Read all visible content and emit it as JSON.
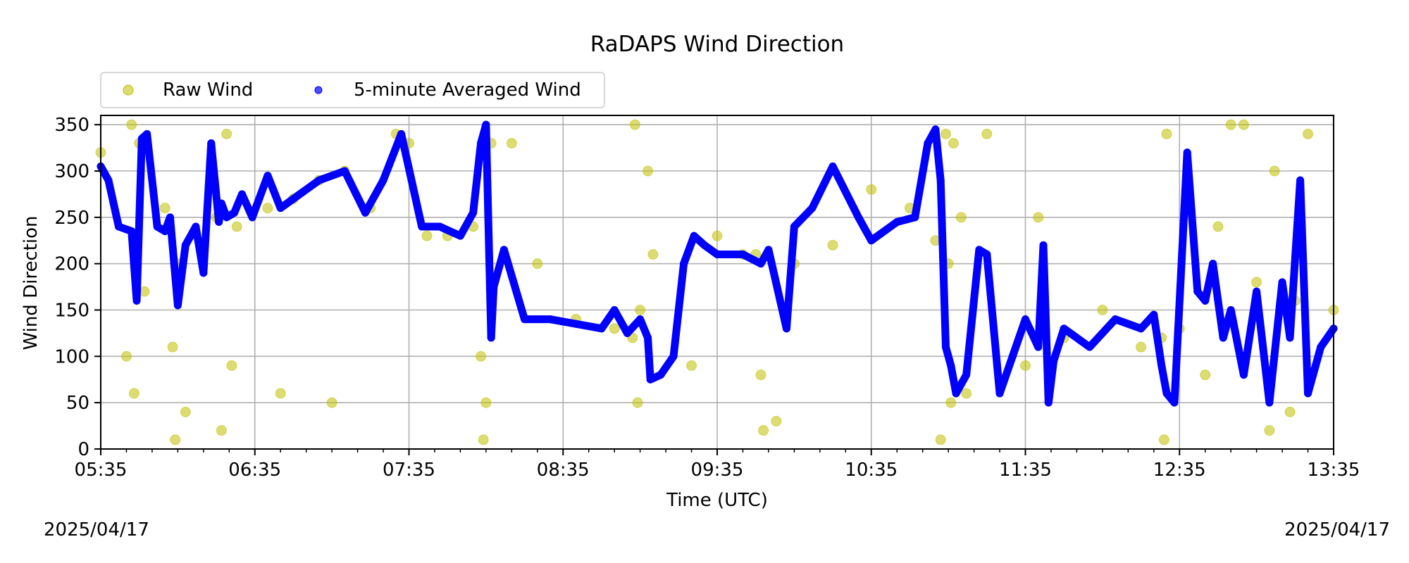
{
  "chart_data": {
    "type": "scatter",
    "title": "RaDAPS Wind Direction",
    "xlabel": "Time (UTC)",
    "ylabel": "Wind Direction",
    "x_unit": "time (UTC, HH:MM)",
    "xlim": [
      "05:35",
      "13:35"
    ],
    "ylim": [
      0,
      360
    ],
    "x_ticks": [
      "05:35",
      "06:35",
      "07:35",
      "08:35",
      "09:35",
      "10:35",
      "11:35",
      "12:35",
      "13:35"
    ],
    "y_ticks": [
      0,
      50,
      100,
      150,
      200,
      250,
      300,
      350
    ],
    "grid": true,
    "legend": {
      "placement": "top-left, above plot",
      "entries": [
        "Raw Wind",
        "5-minute Averaged Wind"
      ]
    },
    "date_left": "2025/04/17",
    "date_right": "2025/04/17",
    "series": [
      {
        "name": "Raw Wind",
        "color": "#bfbf00",
        "opacity": 0.55,
        "x": [
          "05:35",
          "05:50",
          "06:00",
          "06:05",
          "06:20",
          "06:28",
          "06:40",
          "06:50",
          "07:00",
          "07:10",
          "07:20",
          "07:30",
          "07:35",
          "07:50",
          "08:00",
          "08:15",
          "08:25",
          "08:40",
          "08:55",
          "09:05",
          "09:10",
          "09:25",
          "09:35",
          "09:50",
          "10:05",
          "10:20",
          "10:35",
          "10:50",
          "11:00",
          "11:10",
          "11:20",
          "11:35",
          "11:50",
          "12:05",
          "12:20",
          "12:35",
          "12:50",
          "13:05",
          "13:20",
          "13:35",
          "05:45",
          "05:48",
          "05:52",
          "06:03",
          "06:08",
          "06:22",
          "06:26",
          "06:45",
          "07:05",
          "07:42",
          "08:03",
          "08:05",
          "08:07",
          "09:02",
          "09:04",
          "09:08",
          "09:45",
          "09:52",
          "09:58",
          "10:02",
          "11:02",
          "11:05",
          "11:07",
          "11:12",
          "11:40",
          "12:28",
          "12:30",
          "12:45",
          "13:00",
          "13:12",
          "13:18",
          "05:47",
          "06:04",
          "06:24",
          "08:04",
          "09:03",
          "09:53",
          "11:04",
          "11:06",
          "12:29",
          "12:55",
          "13:10",
          "13:25"
        ],
        "y": [
          320,
          330,
          260,
          200,
          250,
          240,
          260,
          270,
          290,
          300,
          260,
          340,
          330,
          230,
          240,
          330,
          200,
          140,
          130,
          150,
          210,
          90,
          230,
          210,
          200,
          220,
          280,
          260,
          225,
          250,
          340,
          90,
          120,
          150,
          110,
          130,
          240,
          180,
          160,
          150,
          100,
          60,
          170,
          110,
          40,
          20,
          90,
          60,
          50,
          230,
          100,
          50,
          330,
          120,
          50,
          300,
          210,
          80,
          30,
          150,
          10,
          200,
          330,
          60,
          250,
          120,
          340,
          80,
          350,
          300,
          40,
          350,
          10,
          340,
          10,
          350,
          20,
          340,
          50,
          10,
          350,
          20,
          340
        ]
      },
      {
        "name": "5-minute Averaged Wind",
        "color": "#0000ff",
        "x": [
          "05:35",
          "05:38",
          "05:42",
          "05:47",
          "05:49",
          "05:51",
          "05:53",
          "05:57",
          "06:00",
          "06:02",
          "06:05",
          "06:08",
          "06:12",
          "06:15",
          "06:18",
          "06:21",
          "06:22",
          "06:24",
          "06:27",
          "06:30",
          "06:34",
          "06:40",
          "06:45",
          "06:50",
          "07:00",
          "07:10",
          "07:18",
          "07:25",
          "07:32",
          "07:40",
          "07:47",
          "07:55",
          "08:00",
          "08:03",
          "08:05",
          "08:07",
          "08:08",
          "08:12",
          "08:20",
          "08:30",
          "08:40",
          "08:50",
          "08:55",
          "09:00",
          "09:05",
          "09:08",
          "09:09",
          "09:13",
          "09:18",
          "09:22",
          "09:26",
          "09:30",
          "09:35",
          "09:45",
          "09:52",
          "09:55",
          "10:02",
          "10:05",
          "10:12",
          "10:20",
          "10:30",
          "10:35",
          "10:45",
          "10:52",
          "10:57",
          "11:00",
          "11:02",
          "11:04",
          "11:06",
          "11:08",
          "11:12",
          "11:17",
          "11:20",
          "11:25",
          "11:30",
          "11:35",
          "11:40",
          "11:42",
          "11:44",
          "11:46",
          "11:50",
          "12:00",
          "12:10",
          "12:20",
          "12:25",
          "12:28",
          "12:30",
          "12:33",
          "12:38",
          "12:42",
          "12:45",
          "12:48",
          "12:52",
          "12:55",
          "13:00",
          "13:05",
          "13:10",
          "13:15",
          "13:18",
          "13:22",
          "13:25",
          "13:30",
          "13:35"
        ],
        "y": [
          305,
          290,
          240,
          235,
          160,
          335,
          340,
          240,
          235,
          250,
          155,
          220,
          240,
          190,
          330,
          245,
          265,
          250,
          255,
          275,
          250,
          295,
          260,
          270,
          290,
          300,
          255,
          290,
          340,
          240,
          240,
          230,
          255,
          330,
          350,
          120,
          175,
          215,
          140,
          140,
          135,
          130,
          150,
          125,
          140,
          120,
          75,
          80,
          100,
          200,
          230,
          220,
          210,
          210,
          200,
          215,
          130,
          240,
          260,
          305,
          250,
          225,
          245,
          250,
          330,
          345,
          290,
          110,
          90,
          60,
          80,
          215,
          210,
          60,
          100,
          140,
          110,
          220,
          50,
          95,
          130,
          110,
          140,
          130,
          145,
          90,
          60,
          50,
          320,
          170,
          160,
          200,
          120,
          150,
          80,
          170,
          50,
          180,
          120,
          290,
          60,
          110,
          130
        ]
      }
    ]
  }
}
